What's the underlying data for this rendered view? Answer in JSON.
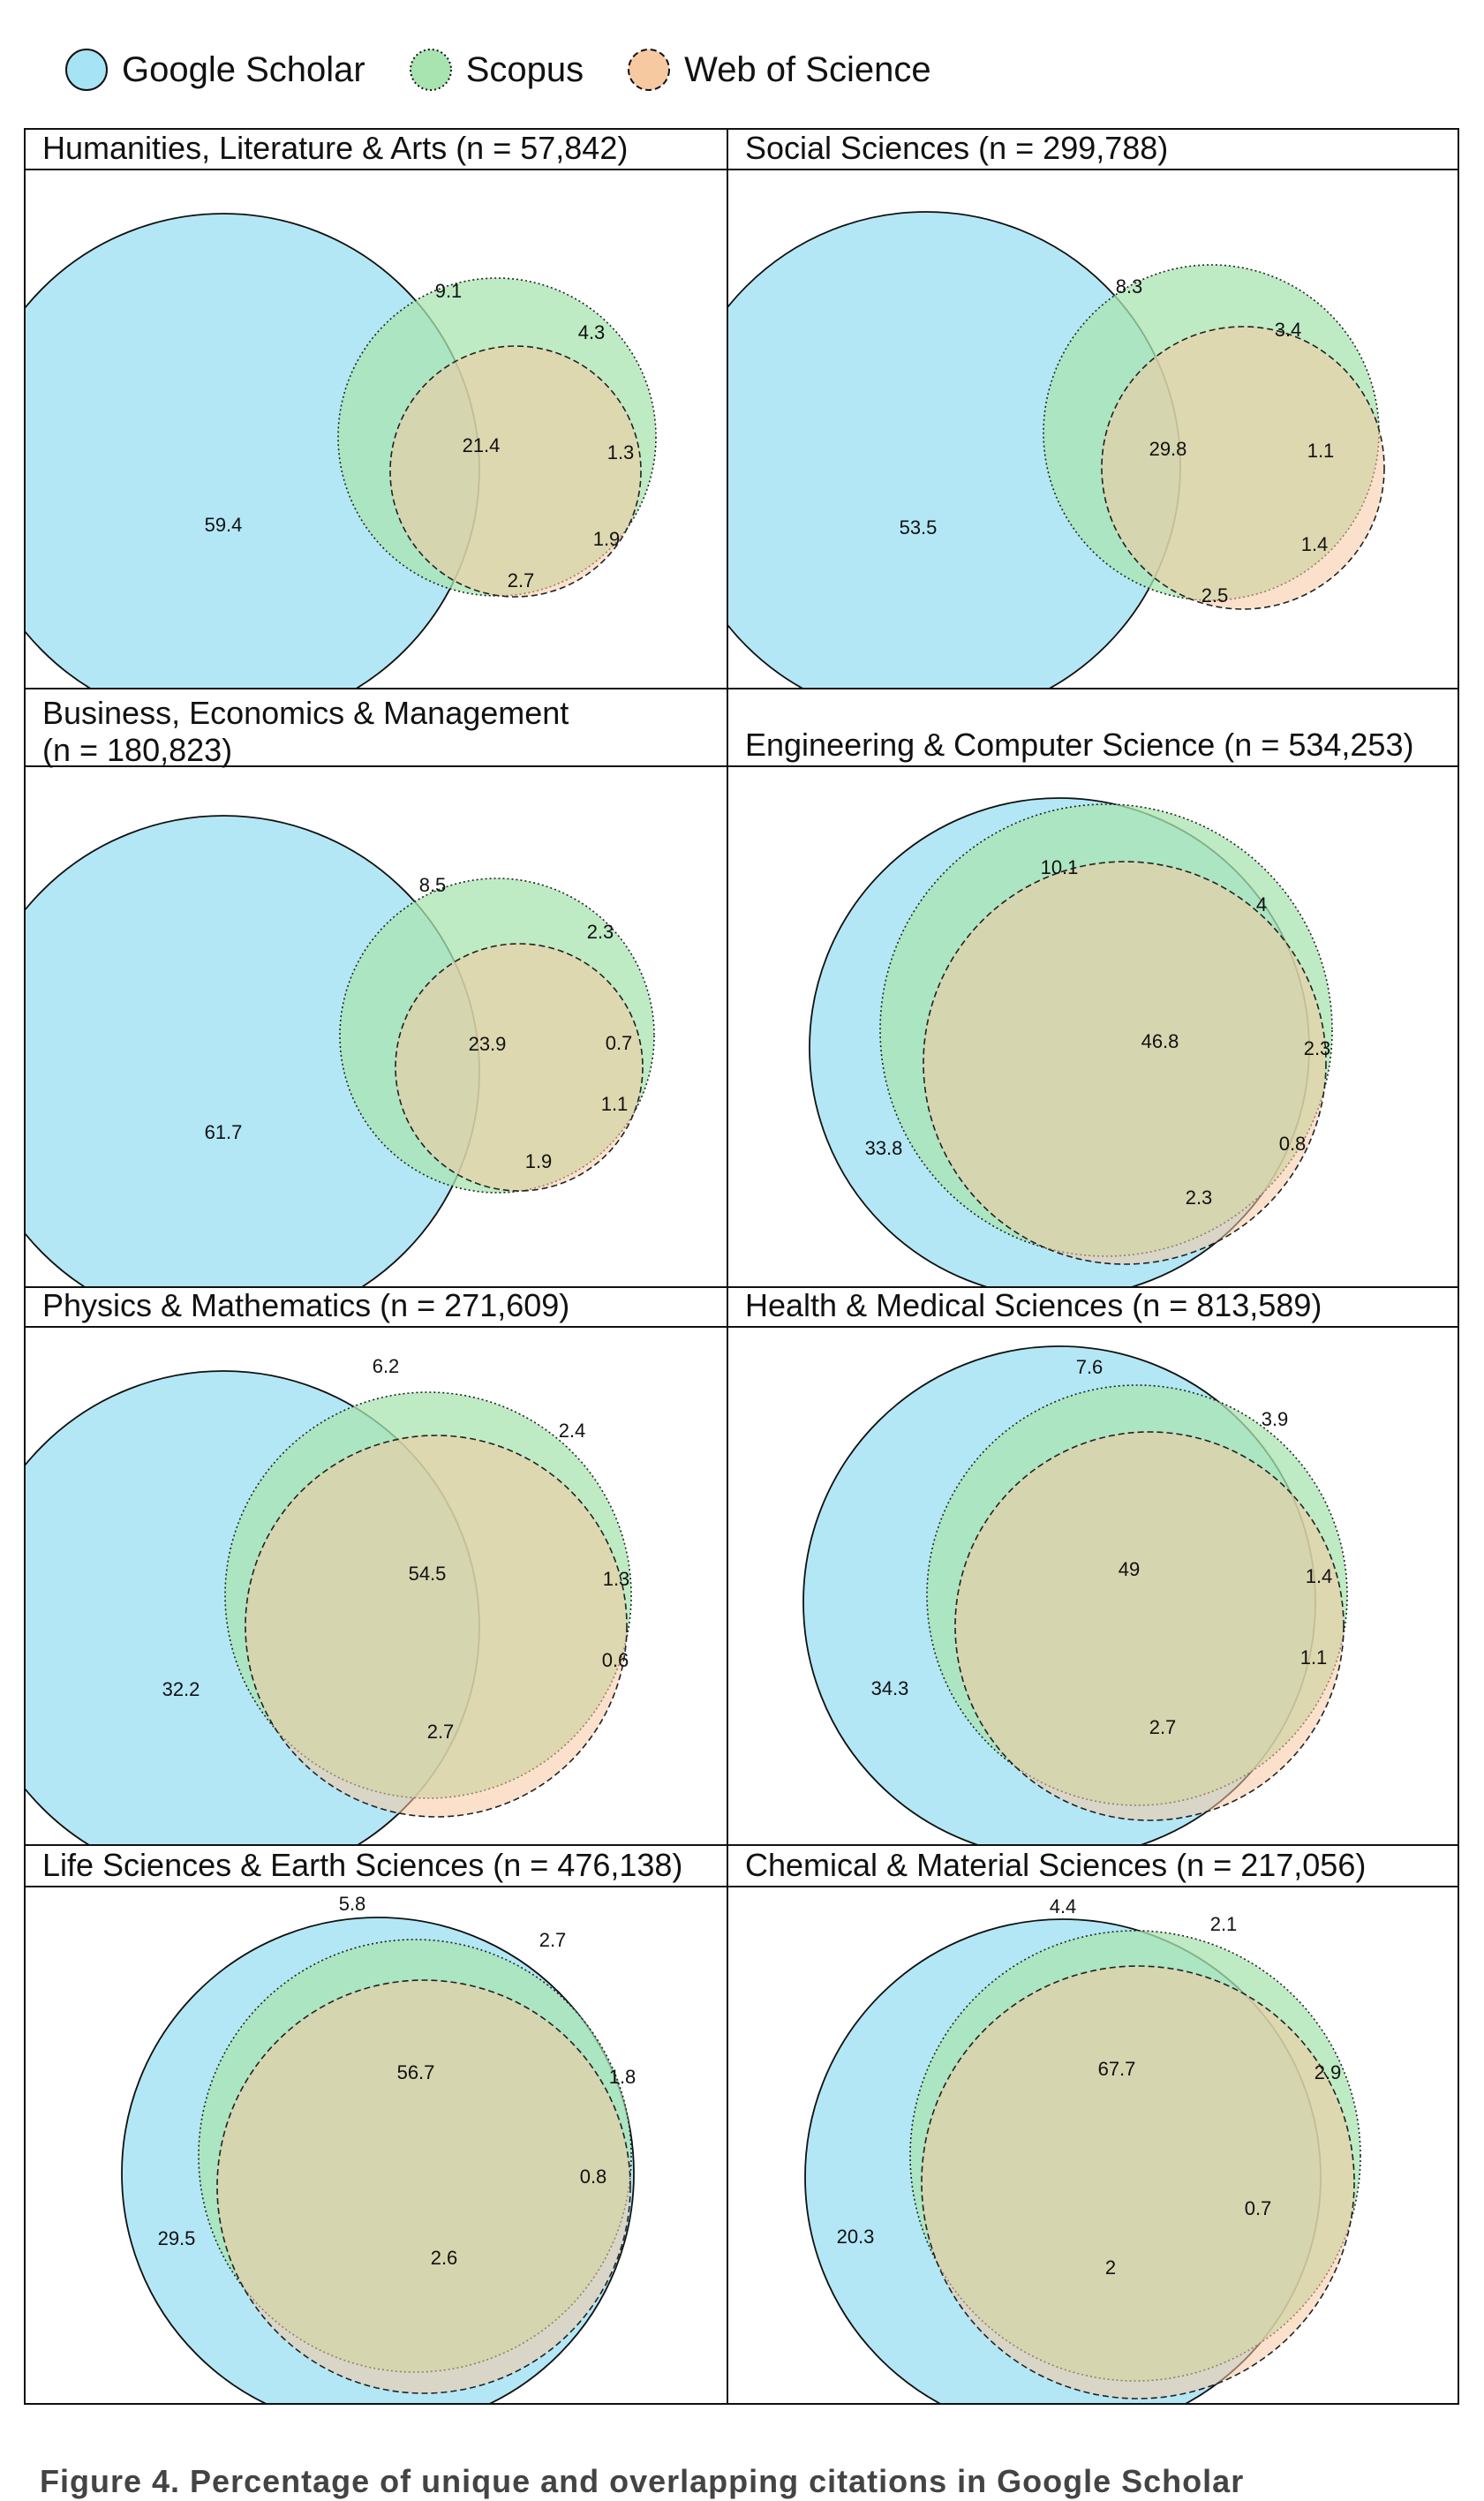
{
  "legend": [
    {
      "name": "Google Scholar",
      "color": "#a6e3f5",
      "line": "solid"
    },
    {
      "name": "Scopus",
      "color": "#a8e4b0",
      "line": "dotted"
    },
    {
      "name": "Web of Science",
      "color": "#f7c9a0",
      "line": "dashed"
    }
  ],
  "caption": "Figure 4. Percentage of unique and overlapping citations in Google Scholar",
  "chart_data": [
    {
      "type": "venn",
      "title": "Humanities, Literature & Arts (n = 57,842)",
      "values": {
        "gs_only": 59.4,
        "gs_scopus": 9.1,
        "scopus_only": 4.3,
        "all_three": 21.4,
        "scopus_wos": 1.3,
        "wos_only": 1.9,
        "gs_wos": 2.7
      }
    },
    {
      "type": "venn",
      "title": "Social Sciences (n = 299,788)",
      "values": {
        "gs_only": 53.5,
        "gs_scopus": 8.3,
        "scopus_only": 3.4,
        "all_three": 29.8,
        "scopus_wos": 1.1,
        "wos_only": 1.4,
        "gs_wos": 2.5
      }
    },
    {
      "type": "venn",
      "title": "Business, Economics & Management (n = 180,823)",
      "values": {
        "gs_only": 61.7,
        "gs_scopus": 8.5,
        "scopus_only": 2.3,
        "all_three": 23.9,
        "scopus_wos": 0.7,
        "wos_only": 1.1,
        "gs_wos": 1.9
      }
    },
    {
      "type": "venn",
      "title": "Engineering & Computer Science (n = 534,253)",
      "values": {
        "gs_only": 33.8,
        "gs_scopus": 10.1,
        "scopus_only": 4,
        "all_three": 46.8,
        "scopus_wos": 2.3,
        "wos_only": 0.8,
        "gs_wos": 2.3
      }
    },
    {
      "type": "venn",
      "title": "Physics & Mathematics (n = 271,609)",
      "values": {
        "gs_only": 32.2,
        "gs_scopus": 6.2,
        "scopus_only": 2.4,
        "all_three": 54.5,
        "scopus_wos": 1.3,
        "wos_only": 0.6,
        "gs_wos": 2.7
      }
    },
    {
      "type": "venn",
      "title": "Health & Medical Sciences (n = 813,589)",
      "values": {
        "gs_only": 34.3,
        "gs_scopus": 7.6,
        "scopus_only": 3.9,
        "all_three": 49,
        "scopus_wos": 1.4,
        "wos_only": 1.1,
        "gs_wos": 2.7
      }
    },
    {
      "type": "venn",
      "title": "Life Sciences & Earth Sciences (n = 476,138)",
      "values": {
        "gs_only": 29.5,
        "gs_scopus": 5.8,
        "scopus_only": 2.7,
        "all_three": 56.7,
        "scopus_wos": 1.8,
        "wos_only": 0.8,
        "gs_wos": 2.6
      }
    },
    {
      "type": "venn",
      "title": "Chemical & Material Sciences (n = 217,056)",
      "values": {
        "gs_only": 20.3,
        "gs_scopus": 4.4,
        "scopus_only": 2.1,
        "all_three": 67.7,
        "scopus_wos": 2.9,
        "wos_only": 0.7,
        "gs_wos": 2
      }
    }
  ]
}
